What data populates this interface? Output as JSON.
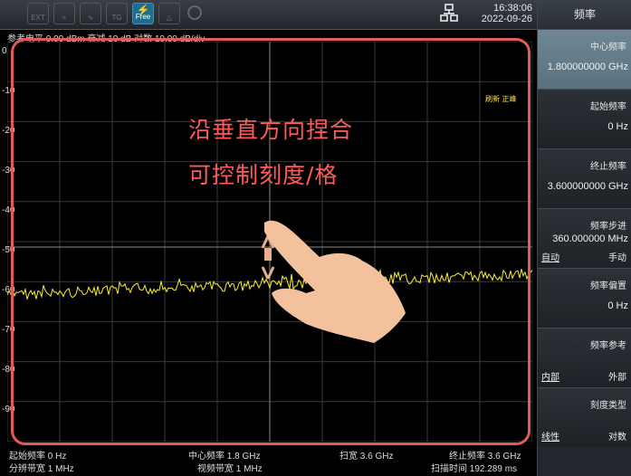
{
  "toolbar": {
    "icons": [
      "ext-trigger-icon",
      "trace-icon",
      "single-icon",
      "tg-icon",
      "free-run-icon",
      "marker-icon",
      "zoom-icon"
    ],
    "free_label": "Free"
  },
  "clock": {
    "time": "16:38:06",
    "date": "2022-09-26"
  },
  "reference_line": "参考电平 0.00 dBm  衰减 10 dB  对数 10.00 dB/div",
  "y_ticks": [
    "0",
    "-10",
    "-20",
    "-30",
    "-40",
    "-50",
    "-60",
    "-70",
    "-80",
    "-90"
  ],
  "screen_status": "刷新 正峰",
  "gesture_text": {
    "line1": "沿垂直方向捏合",
    "line2": "可控制刻度/格"
  },
  "bottom": {
    "start_freq": "起始频率 0 Hz",
    "center_freq": "中心频率 1.8 GHz",
    "span": "扫宽 3.6 GHz",
    "stop_freq": "终止频率 3.6 GHz",
    "rbw": "分辨带宽 1 MHz",
    "vbw": "视频带宽 1 MHz",
    "sweep_time": "扫描时间 192.289 ms"
  },
  "sidebar": {
    "title": "频率",
    "items": [
      {
        "label": "中心频率",
        "value": "1.800000000 GHz"
      },
      {
        "label": "起始频率",
        "value": "0 Hz"
      },
      {
        "label": "终止频率",
        "value": "3.600000000 GHz"
      },
      {
        "label": "频率步进",
        "value": "360.000000 MHz",
        "opt_left": "自动",
        "opt_right": "手动"
      },
      {
        "label": "频率偏置",
        "value": "0 Hz"
      },
      {
        "label": "频率参考",
        "opt_left": "内部",
        "opt_right": "外部"
      },
      {
        "label": "刻度类型",
        "opt_left": "线性",
        "opt_right": "对数"
      }
    ]
  },
  "colors": {
    "trace": "#ffee33",
    "frame": "#e25a5a",
    "gesture_text": "#ff5a5a",
    "active_item": "#6f8794"
  }
}
